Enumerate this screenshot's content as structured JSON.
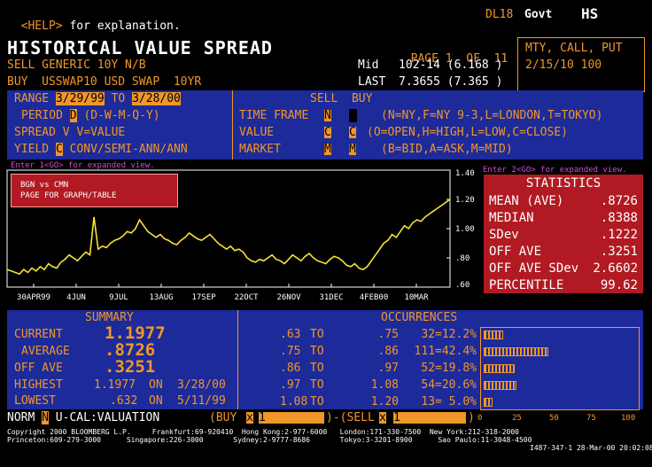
{
  "topbar": {
    "help_tag": "<HELP>",
    "help_text": " for explanation.",
    "security": "DL18",
    "market": "Govt",
    "func": "HS"
  },
  "title": "HISTORICAL VALUE SPREAD",
  "page": {
    "label": "PAGE",
    "num": "1",
    "of_label": "OF",
    "total": "11"
  },
  "right_box": {
    "line1": "MTY, CALL, PUT",
    "line2": "2/15/10 100"
  },
  "sell": {
    "line": "SELL GENERIC 10Y N/B",
    "mid_label": "Mid",
    "mid_value": "102-14 (6.168 )"
  },
  "buy": {
    "line": "BUY  USSWAP10 USD SWAP  10YR",
    "last_label": "LAST",
    "last_value": "7.3655 (7.365 )"
  },
  "params": {
    "range_label": "RANGE",
    "range_from": "3/29/99",
    "to_label": "TO",
    "range_to": "3/28/00",
    "period_label": "PERIOD",
    "period_value": "D",
    "period_hint": "(D-W-M-Q-Y)",
    "spread_line": "SPREAD V V=VALUE",
    "yield_label": "YIELD",
    "yield_value": "C",
    "yield_hint": "CONV/SEMI-ANN/ANN",
    "sell_buy_header": "SELL  BUY",
    "tf_label": "TIME FRAME",
    "tf_sell": "N",
    "tf_hint": "(N=NY,F=NY 9-3,L=LONDON,T=TOKYO)",
    "value_label": "VALUE",
    "value_sell": "C",
    "value_buy": "C",
    "value_hint": "(O=OPEN,H=HIGH,L=LOW,C=CLOSE)",
    "market_label": "MARKET",
    "market_sell": "M",
    "market_buy": "M",
    "market_hint": "(B=BID,A=ASK,M=MID)"
  },
  "hints": {
    "left": "Enter 1<GO> for expanded view.",
    "right": "Enter 2<GO> for expanded view."
  },
  "graph_note": {
    "line1": "BGN vs CMN",
    "line2": "PAGE FOR GRAPH/TABLE"
  },
  "chart_data": {
    "type": "line",
    "x_labels": [
      "30APR99",
      "4JUN",
      "9JUL",
      "13AUG",
      "17SEP",
      "22OCT",
      "26NOV",
      "31DEC",
      "4FEB00",
      "10MAR"
    ],
    "y_ticks": [
      "1.40",
      "1.20",
      "1.00",
      ".80",
      ".60"
    ],
    "ylim": [
      0.6,
      1.4
    ],
    "values": [
      0.72,
      0.71,
      0.7,
      0.69,
      0.72,
      0.7,
      0.73,
      0.71,
      0.74,
      0.72,
      0.76,
      0.74,
      0.73,
      0.77,
      0.79,
      0.82,
      0.8,
      0.78,
      0.81,
      0.84,
      0.82,
      1.08,
      0.86,
      0.88,
      0.87,
      0.9,
      0.92,
      0.93,
      0.95,
      0.98,
      0.97,
      1.0,
      1.06,
      1.02,
      0.98,
      0.96,
      0.94,
      0.96,
      0.93,
      0.92,
      0.9,
      0.89,
      0.92,
      0.94,
      0.97,
      0.95,
      0.93,
      0.92,
      0.94,
      0.96,
      0.93,
      0.9,
      0.88,
      0.86,
      0.88,
      0.85,
      0.86,
      0.84,
      0.8,
      0.78,
      0.77,
      0.79,
      0.78,
      0.8,
      0.82,
      0.79,
      0.78,
      0.76,
      0.79,
      0.82,
      0.8,
      0.78,
      0.81,
      0.83,
      0.8,
      0.78,
      0.77,
      0.76,
      0.79,
      0.81,
      0.8,
      0.78,
      0.75,
      0.74,
      0.76,
      0.73,
      0.72,
      0.74,
      0.78,
      0.82,
      0.86,
      0.9,
      0.92,
      0.96,
      0.94,
      0.98,
      1.02,
      1.0,
      1.04,
      1.06,
      1.05,
      1.08,
      1.1,
      1.12,
      1.14,
      1.16,
      1.18,
      1.2
    ]
  },
  "statistics": {
    "title": "STATISTICS",
    "rows": [
      {
        "label": "MEAN (AVE)",
        "value": ".8726"
      },
      {
        "label": "MEDIAN",
        "value": ".8388"
      },
      {
        "label": "SDev",
        "value": ".1222"
      },
      {
        "label": "OFF AVE",
        "value": ".3251"
      },
      {
        "label": "OFF AVE SDev",
        "value": "2.6602"
      },
      {
        "label": "PERCENTILE",
        "value": "99.62"
      }
    ]
  },
  "summary": {
    "title": "SUMMARY",
    "current_label": "CURRENT",
    "current_value": "1.1977",
    "average_label": "AVERAGE",
    "average_value": ".8726",
    "offave_label": "OFF AVE",
    "offave_value": ".3251",
    "highest_label": "HIGHEST",
    "highest_value": "1.1977",
    "highest_on": "ON",
    "highest_date": "3/28/00",
    "lowest_label": "LOWEST",
    "lowest_value": ".632",
    "lowest_on": "ON",
    "lowest_date": "5/11/99"
  },
  "occurrences": {
    "title": "OCCURRENCES",
    "to_label": "TO",
    "rows": [
      {
        "from": ".63",
        "to": ".75",
        "count": "32=12.2%",
        "pct": 12.2
      },
      {
        "from": ".75",
        "to": ".86",
        "count": "111=42.4%",
        "pct": 42.4
      },
      {
        "from": ".86",
        "to": ".97",
        "count": "52=19.8%",
        "pct": 19.8
      },
      {
        "from": ".97",
        "to": "1.08",
        "count": "54=20.6%",
        "pct": 20.6
      },
      {
        "from": "1.08",
        "to": "1.20",
        "count": "13= 5.0%",
        "pct": 5.0
      }
    ],
    "axis": [
      "0",
      "25",
      "50",
      "75",
      "100"
    ]
  },
  "cmdline": {
    "norm": "NORM",
    "norm_v": "N",
    "ucal": "U-CAL:VALUATION",
    "buy": "(BUY",
    "x1": "x",
    "buy_qty": "1",
    "sell": ")-(SELL",
    "x2": "x",
    "sell_qty": "1",
    "close": ")"
  },
  "footer": {
    "line1": "Copyright 2000 BLOOMBERG L.P.     Frankfurt:69-920410  Hong Kong:2-977-6000   London:171-330-7500  New York:212-318-2000",
    "line2": "Princeton:609-279-3000      Singapore:226-3000       Sydney:2-9777-8686       Tokyo:3-3201-8900      Sao Paulo:11-3048-4500",
    "line3": "I487-347-1 28-Mar-00 20:02:08"
  },
  "colors": {
    "orange": "#f0962a",
    "blue": "#1d2a99",
    "red": "#b11a22",
    "yellow": "#f6e233",
    "magenta": "#d14dd1"
  }
}
